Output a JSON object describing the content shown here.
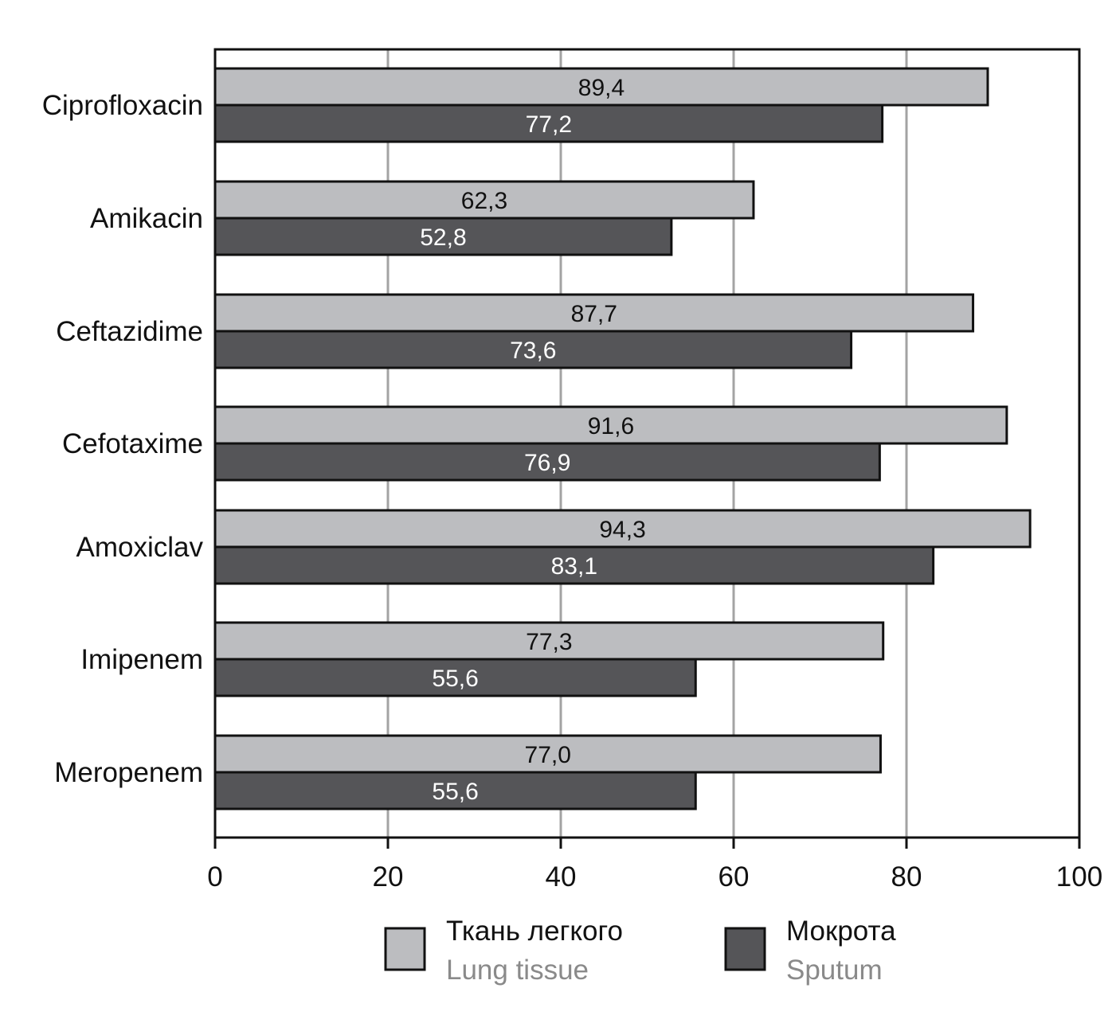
{
  "chart_data": {
    "type": "bar",
    "orientation": "horizontal",
    "categories": [
      "Ciprofloxacin",
      "Amikacin",
      "Ceftazidime",
      "Cefotaxime",
      "Amoxiclav",
      "Imipenem",
      "Meropenem"
    ],
    "series": [
      {
        "name": "Ткань легкого",
        "name_en": "Lung tissue",
        "color": "#bcbdc0",
        "label_color": "#111111",
        "values": [
          89.4,
          62.3,
          87.7,
          91.6,
          94.3,
          77.3,
          77.0
        ],
        "labels": [
          "89,4",
          "62,3",
          "87,7",
          "91,6",
          "94,3",
          "77,3",
          "77,0"
        ]
      },
      {
        "name": "Мокрота",
        "name_en": "Sputum",
        "color": "#555558",
        "label_color": "#ffffff",
        "values": [
          77.2,
          52.8,
          73.6,
          76.9,
          83.1,
          55.6,
          55.6
        ],
        "labels": [
          "77,2",
          "52,8",
          "73,6",
          "76,9",
          "83,1",
          "55,6",
          "55,6"
        ]
      }
    ],
    "xlim": [
      0,
      100
    ],
    "xticks": [
      0,
      20,
      40,
      60,
      80,
      100
    ],
    "xtick_labels": [
      "0",
      "20",
      "40",
      "60",
      "80",
      "100"
    ],
    "grid": "vertical",
    "legend_position": "bottom",
    "title": "",
    "xlabel": "",
    "ylabel": ""
  }
}
